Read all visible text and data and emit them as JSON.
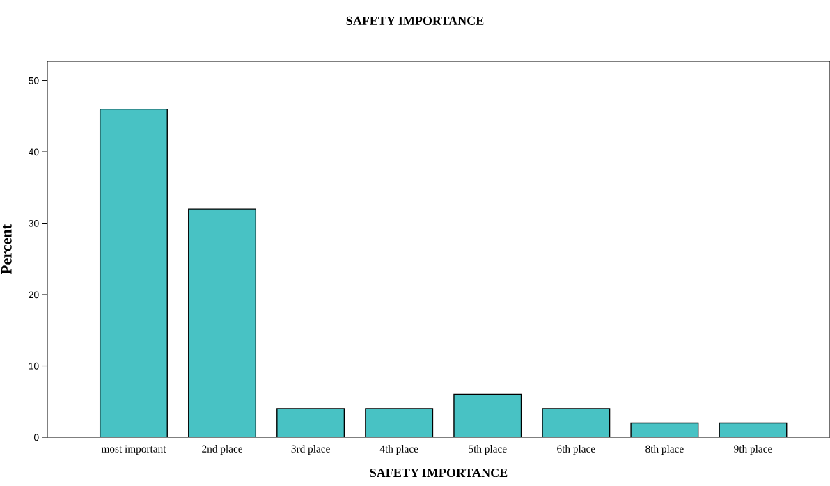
{
  "chart_data": {
    "type": "bar",
    "title": "SAFETY IMPORTANCE",
    "xlabel": "SAFETY IMPORTANCE",
    "ylabel": "Percent",
    "categories": [
      "most important",
      "2nd place",
      "3rd place",
      "4th place",
      "5th place",
      "6th place",
      "8th place",
      "9th place"
    ],
    "values": [
      46,
      32,
      4,
      4,
      6,
      4,
      2,
      2
    ],
    "color": "#48c2c4",
    "ylim": [
      0,
      52.7
    ],
    "yticks": [
      0,
      10,
      20,
      30,
      40,
      50
    ],
    "grid": false
  }
}
